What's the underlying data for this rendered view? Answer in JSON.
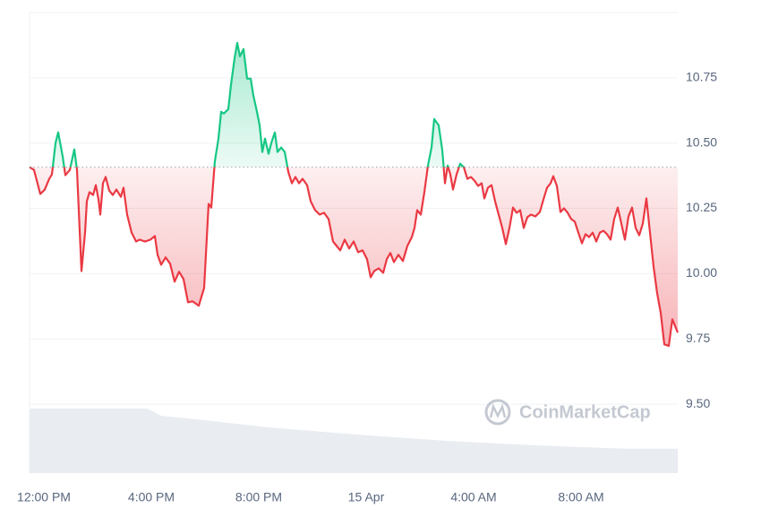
{
  "chart_data": {
    "type": "line",
    "watermark": "CoinMarketCap",
    "xlim": [
      -32,
      1416
    ],
    "xticks": [
      {
        "value": 0,
        "label": "12:00 PM"
      },
      {
        "value": 240,
        "label": "4:00 PM"
      },
      {
        "value": 480,
        "label": "8:00 PM"
      },
      {
        "value": 720,
        "label": "15 Apr"
      },
      {
        "value": 960,
        "label": "4:00 AM"
      },
      {
        "value": 1200,
        "label": "8:00 AM"
      }
    ],
    "ylim": [
      9.236,
      11.0
    ],
    "yticks": [
      {
        "value": 9.5,
        "label": "9.50"
      },
      9.75,
      {
        "value": 10,
        "label": "10.00"
      },
      10.25,
      {
        "value": 10.5,
        "label": "10.50"
      },
      10.75
    ],
    "grid": true,
    "baseline": 10.408,
    "up_color": "#16c784",
    "down_color": "#ea3943",
    "series": [
      {
        "x": [
          -32,
          -22,
          -8,
          2,
          12,
          18,
          26,
          32,
          42,
          48,
          58,
          68,
          74,
          84,
          92,
          96,
          102,
          110,
          116,
          122,
          126,
          132,
          138,
          146,
          154,
          162,
          172,
          178,
          186,
          196,
          206,
          214,
          226,
          238,
          248,
          254,
          262,
          272,
          282,
          292,
          302,
          312,
          322,
          332,
          346,
          358,
          368,
          374,
          382,
          390,
          396,
          402,
          412,
          418,
          426,
          432,
          438,
          446,
          454,
          462,
          468,
          476,
          482,
          488,
          494,
          502,
          508,
          516,
          522,
          530,
          538,
          546,
          554,
          562,
          570,
          578,
          588,
          596,
          606,
          616,
          626,
          636,
          646,
          654,
          662,
          672,
          682,
          692,
          702,
          712,
          722,
          730,
          738,
          748,
          758,
          766,
          774,
          782,
          792,
          802,
          812,
          822,
          828,
          834,
          842,
          850,
          858,
          866,
          872,
          882,
          890,
          896,
          902,
          908,
          914,
          922,
          930,
          938,
          946,
          954,
          962,
          970,
          978,
          984,
          992,
          1000,
          1008,
          1016,
          1024,
          1032,
          1040,
          1048,
          1056,
          1064,
          1072,
          1080,
          1088,
          1098,
          1108,
          1116,
          1124,
          1132,
          1138,
          1146,
          1154,
          1162,
          1170,
          1178,
          1186,
          1194,
          1202,
          1210,
          1218,
          1226,
          1234,
          1242,
          1250,
          1258,
          1266,
          1274,
          1282,
          1290,
          1298,
          1306,
          1314,
          1322,
          1330,
          1338,
          1346,
          1354,
          1362,
          1370,
          1378,
          1386,
          1396,
          1404,
          1416
        ],
        "values": [
          10.408,
          10.397,
          10.305,
          10.322,
          10.363,
          10.38,
          10.5,
          10.541,
          10.449,
          10.377,
          10.397,
          10.476,
          10.397,
          10.01,
          10.157,
          10.277,
          10.312,
          10.301,
          10.339,
          10.284,
          10.226,
          10.346,
          10.37,
          10.318,
          10.301,
          10.322,
          10.294,
          10.329,
          10.226,
          10.157,
          10.123,
          10.13,
          10.123,
          10.13,
          10.144,
          10.072,
          10.034,
          10.062,
          10.038,
          9.969,
          10.007,
          9.979,
          9.89,
          9.894,
          9.877,
          9.945,
          10.267,
          10.253,
          10.431,
          10.517,
          10.62,
          10.613,
          10.63,
          10.723,
          10.825,
          10.884,
          10.832,
          10.86,
          10.747,
          10.747,
          10.682,
          10.62,
          10.568,
          10.466,
          10.517,
          10.459,
          10.5,
          10.541,
          10.466,
          10.483,
          10.466,
          10.39,
          10.346,
          10.37,
          10.346,
          10.363,
          10.339,
          10.277,
          10.243,
          10.226,
          10.233,
          10.209,
          10.123,
          10.106,
          10.089,
          10.13,
          10.096,
          10.123,
          10.082,
          10.089,
          10.055,
          9.986,
          10.01,
          10.02,
          10.003,
          10.055,
          10.079,
          10.044,
          10.072,
          10.048,
          10.106,
          10.14,
          10.175,
          10.243,
          10.226,
          10.312,
          10.414,
          10.483,
          10.592,
          10.568,
          10.473,
          10.346,
          10.414,
          10.38,
          10.322,
          10.38,
          10.421,
          10.408,
          10.363,
          10.37,
          10.356,
          10.336,
          10.346,
          10.288,
          10.329,
          10.339,
          10.277,
          10.226,
          10.175,
          10.113,
          10.175,
          10.253,
          10.233,
          10.243,
          10.175,
          10.216,
          10.226,
          10.219,
          10.236,
          10.284,
          10.329,
          10.346,
          10.373,
          10.336,
          10.236,
          10.25,
          10.233,
          10.209,
          10.199,
          10.157,
          10.116,
          10.151,
          10.14,
          10.157,
          10.123,
          10.157,
          10.164,
          10.151,
          10.13,
          10.209,
          10.253,
          10.192,
          10.13,
          10.219,
          10.253,
          10.175,
          10.147,
          10.192,
          10.288,
          10.157,
          10.027,
          9.925,
          9.849,
          9.729,
          9.723,
          9.825,
          9.774
        ]
      }
    ],
    "volume": {
      "color": "#e9ecf1",
      "x": [
        -32,
        232,
        262,
        362,
        502,
        702,
        902,
        1102,
        1302,
        1416
      ],
      "values": [
        9.483,
        9.483,
        9.455,
        9.438,
        9.411,
        9.383,
        9.359,
        9.342,
        9.329,
        9.329
      ]
    }
  }
}
